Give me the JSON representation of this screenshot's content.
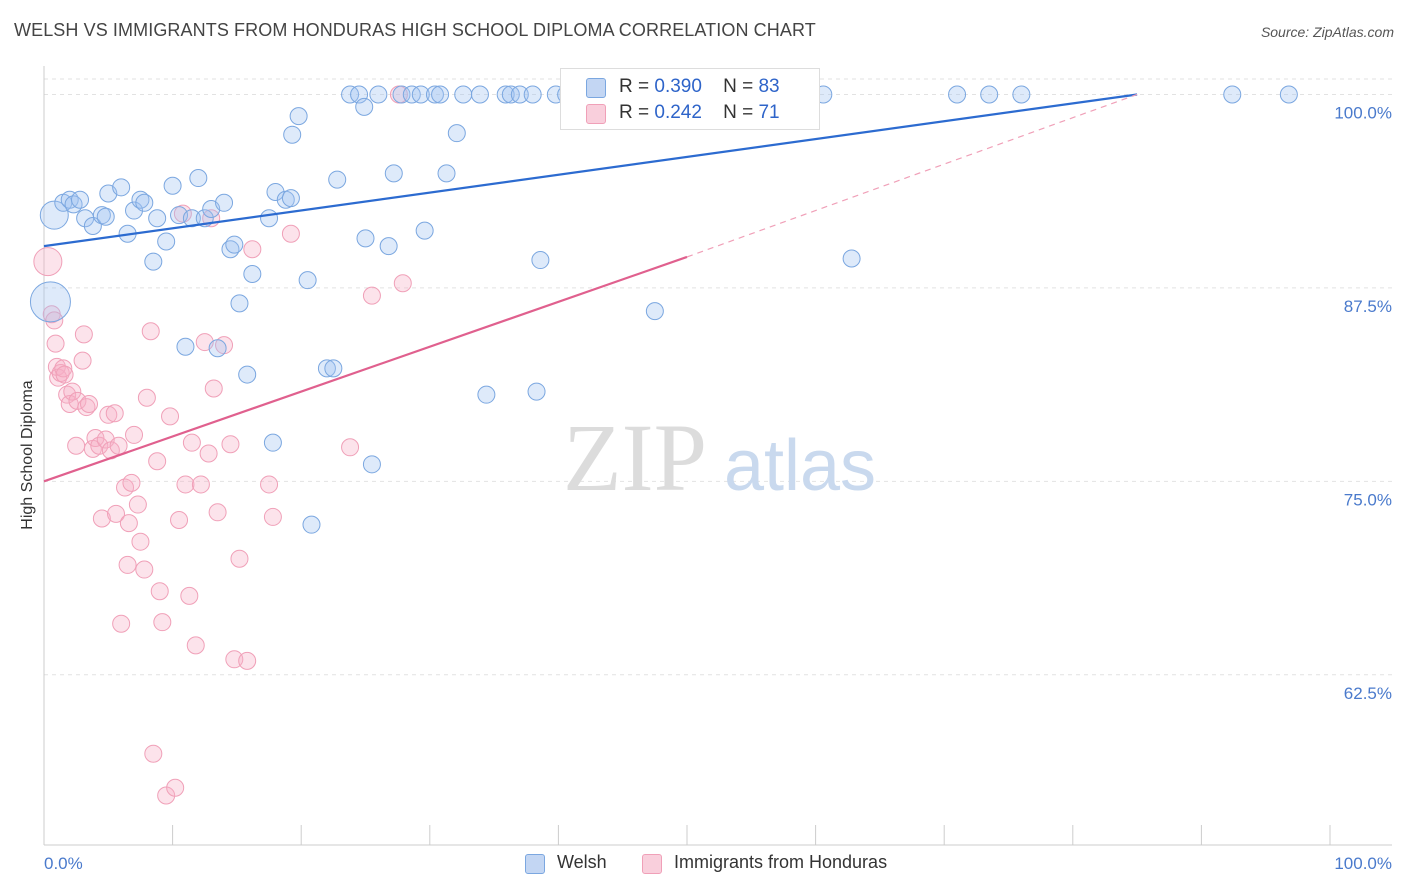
{
  "title": "WELSH VS IMMIGRANTS FROM HONDURAS HIGH SCHOOL DIPLOMA CORRELATION CHART",
  "source": "Source: ZipAtlas.com",
  "watermark": {
    "zip": "ZIP",
    "atlas": "atlas"
  },
  "legend_top": [
    {
      "r_label": "R =",
      "r_value": "0.390",
      "n_label": "N =",
      "n_value": "83"
    },
    {
      "r_label": "R =",
      "r_value": "0.242",
      "n_label": "N =",
      "n_value": "71"
    }
  ],
  "legend_bottom": [
    "Welsh",
    "Immigrants from Honduras"
  ],
  "chart_data": {
    "type": "scatter",
    "title": "WELSH VS IMMIGRANTS FROM HONDURAS HIGH SCHOOL DIPLOMA CORRELATION CHART",
    "xlabel": "",
    "ylabel": "High School Diploma",
    "xlim": [
      0,
      100
    ],
    "ylim": [
      51.5,
      101
    ],
    "x_tick_labels": [
      "0.0%",
      "100.0%"
    ],
    "y_ticks": [
      62.5,
      75.0,
      87.5,
      100.0
    ],
    "y_tick_labels": [
      "62.5%",
      "75.0%",
      "87.5%",
      "100.0%"
    ],
    "grid": true,
    "legend_placement": "bottom",
    "colors": {
      "welsh": "#7ba7e0",
      "welsh_line": "#2c6bd0",
      "honduras": "#f0a0b8",
      "honduras_line": "#e0608e",
      "axis_text": "#4a7acc"
    },
    "series": [
      {
        "name": "Welsh",
        "R": 0.39,
        "N": 83,
        "trend": {
          "x": [
            0,
            85
          ],
          "y": [
            90.2,
            100.0
          ]
        },
        "points": [
          [
            0.8,
            92.2,
            2
          ],
          [
            0.5,
            86.6,
            3
          ],
          [
            1.5,
            93.0,
            1
          ],
          [
            2.0,
            93.2,
            1
          ],
          [
            2.3,
            92.9,
            1
          ],
          [
            2.8,
            93.2,
            1
          ],
          [
            3.2,
            92.0,
            1
          ],
          [
            3.8,
            91.5,
            1
          ],
          [
            4.5,
            92.2,
            1
          ],
          [
            4.8,
            92.1,
            1
          ],
          [
            5.0,
            93.6,
            1
          ],
          [
            6.0,
            94.0,
            1
          ],
          [
            6.5,
            91.0,
            1
          ],
          [
            7.0,
            92.5,
            1
          ],
          [
            7.5,
            93.2,
            1
          ],
          [
            7.8,
            93.0,
            1
          ],
          [
            8.5,
            89.2,
            1
          ],
          [
            8.8,
            92.0,
            1
          ],
          [
            9.5,
            90.5,
            1
          ],
          [
            10.0,
            94.1,
            1
          ],
          [
            10.5,
            92.2,
            1
          ],
          [
            11.0,
            83.7,
            1
          ],
          [
            11.5,
            92.0,
            1
          ],
          [
            12.0,
            94.6,
            1
          ],
          [
            12.5,
            92.0,
            1
          ],
          [
            13.0,
            92.6,
            1
          ],
          [
            13.5,
            83.6,
            1
          ],
          [
            14.0,
            93.0,
            1
          ],
          [
            14.5,
            90.0,
            1
          ],
          [
            14.8,
            90.3,
            1
          ],
          [
            15.2,
            86.5,
            1
          ],
          [
            15.8,
            81.9,
            1
          ],
          [
            16.2,
            88.4,
            1
          ],
          [
            17.5,
            92.0,
            1
          ],
          [
            17.8,
            77.5,
            1
          ],
          [
            18.0,
            93.7,
            1
          ],
          [
            18.8,
            93.2,
            1
          ],
          [
            19.2,
            93.3,
            1
          ],
          [
            19.3,
            97.4,
            1
          ],
          [
            19.8,
            98.6,
            1
          ],
          [
            20.5,
            88.0,
            1
          ],
          [
            20.8,
            72.2,
            1
          ],
          [
            22.0,
            82.3,
            1
          ],
          [
            22.5,
            82.3,
            1
          ],
          [
            22.8,
            94.5,
            1
          ],
          [
            23.8,
            100.0,
            1
          ],
          [
            24.5,
            100.0,
            1
          ],
          [
            24.9,
            99.2,
            1
          ],
          [
            25.0,
            90.7,
            1
          ],
          [
            25.5,
            76.1,
            1
          ],
          [
            26.0,
            100.0,
            1
          ],
          [
            26.8,
            90.2,
            1
          ],
          [
            27.2,
            94.9,
            1
          ],
          [
            27.8,
            100.0,
            1
          ],
          [
            28.6,
            100.0,
            1
          ],
          [
            29.3,
            100.0,
            1
          ],
          [
            29.6,
            91.2,
            1
          ],
          [
            30.4,
            100.0,
            1
          ],
          [
            30.8,
            100.0,
            1
          ],
          [
            31.3,
            94.9,
            1
          ],
          [
            32.1,
            97.5,
            1
          ],
          [
            32.6,
            100.0,
            1
          ],
          [
            33.9,
            100.0,
            1
          ],
          [
            34.4,
            80.6,
            1
          ],
          [
            35.9,
            100.0,
            1
          ],
          [
            36.3,
            100.0,
            1
          ],
          [
            37.0,
            100.0,
            1
          ],
          [
            38.0,
            100.0,
            1
          ],
          [
            38.3,
            80.8,
            1
          ],
          [
            38.6,
            89.3,
            1
          ],
          [
            39.8,
            100.0,
            1
          ],
          [
            40.6,
            100.0,
            1
          ],
          [
            46.3,
            100.0,
            1
          ],
          [
            47.5,
            86.0,
            1
          ],
          [
            54.0,
            100.0,
            1
          ],
          [
            56.3,
            100.0,
            1
          ],
          [
            60.6,
            100.0,
            1
          ],
          [
            62.8,
            89.4,
            1
          ],
          [
            71.0,
            100.0,
            1
          ],
          [
            73.5,
            100.0,
            1
          ],
          [
            76.0,
            100.0,
            1
          ],
          [
            92.4,
            100.0,
            1
          ],
          [
            96.8,
            100.0,
            1
          ]
        ]
      },
      {
        "name": "Immigrants from Honduras",
        "R": 0.242,
        "N": 71,
        "trend": {
          "x": [
            0,
            50
          ],
          "y": [
            75.0,
            89.5
          ]
        },
        "trend_dashed": {
          "x": [
            50,
            85
          ],
          "y": [
            89.5,
            100.0
          ]
        },
        "points": [
          [
            0.3,
            89.2,
            2
          ],
          [
            0.6,
            85.8,
            1
          ],
          [
            0.8,
            85.4,
            1
          ],
          [
            0.9,
            83.9,
            1
          ],
          [
            1.0,
            82.4,
            1
          ],
          [
            1.1,
            81.7,
            1
          ],
          [
            1.3,
            82.0,
            1
          ],
          [
            1.5,
            82.3,
            1
          ],
          [
            1.6,
            81.9,
            1
          ],
          [
            1.8,
            80.6,
            1
          ],
          [
            2.0,
            80.0,
            1
          ],
          [
            2.2,
            80.8,
            1
          ],
          [
            2.5,
            77.3,
            1
          ],
          [
            2.6,
            80.2,
            1
          ],
          [
            3.0,
            82.8,
            1
          ],
          [
            3.1,
            84.5,
            1
          ],
          [
            3.3,
            79.8,
            1
          ],
          [
            3.5,
            80.0,
            1
          ],
          [
            3.8,
            77.1,
            1
          ],
          [
            4.0,
            77.8,
            1
          ],
          [
            4.3,
            77.3,
            1
          ],
          [
            4.5,
            72.6,
            1
          ],
          [
            4.8,
            77.7,
            1
          ],
          [
            5.0,
            79.3,
            1
          ],
          [
            5.2,
            77.0,
            1
          ],
          [
            5.5,
            79.4,
            1
          ],
          [
            5.6,
            72.9,
            1
          ],
          [
            5.8,
            77.3,
            1
          ],
          [
            6.0,
            65.8,
            1
          ],
          [
            6.3,
            74.6,
            1
          ],
          [
            6.5,
            69.6,
            1
          ],
          [
            6.6,
            72.3,
            1
          ],
          [
            6.8,
            74.9,
            1
          ],
          [
            7.0,
            78.0,
            1
          ],
          [
            7.3,
            73.5,
            1
          ],
          [
            7.5,
            71.1,
            1
          ],
          [
            7.8,
            69.3,
            1
          ],
          [
            8.0,
            80.4,
            1
          ],
          [
            8.3,
            84.7,
            1
          ],
          [
            8.5,
            57.4,
            1
          ],
          [
            8.8,
            76.3,
            1
          ],
          [
            9.0,
            67.9,
            1
          ],
          [
            9.2,
            65.9,
            1
          ],
          [
            9.5,
            54.7,
            1
          ],
          [
            9.8,
            79.2,
            1
          ],
          [
            10.2,
            55.2,
            1
          ],
          [
            10.5,
            72.5,
            1
          ],
          [
            10.8,
            92.3,
            1
          ],
          [
            11.0,
            74.8,
            1
          ],
          [
            11.3,
            67.6,
            1
          ],
          [
            11.5,
            77.5,
            1
          ],
          [
            11.8,
            64.4,
            1
          ],
          [
            12.2,
            74.8,
            1
          ],
          [
            12.5,
            84.0,
            1
          ],
          [
            12.8,
            76.8,
            1
          ],
          [
            13.0,
            92.0,
            1
          ],
          [
            13.2,
            81.0,
            1
          ],
          [
            13.5,
            73.0,
            1
          ],
          [
            14.0,
            83.8,
            1
          ],
          [
            14.5,
            77.4,
            1
          ],
          [
            14.8,
            63.5,
            1
          ],
          [
            15.2,
            70.0,
            1
          ],
          [
            15.8,
            63.4,
            1
          ],
          [
            16.2,
            90.0,
            1
          ],
          [
            17.5,
            74.8,
            1
          ],
          [
            17.8,
            72.7,
            1
          ],
          [
            19.2,
            91.0,
            1
          ],
          [
            23.8,
            77.2,
            1
          ],
          [
            25.5,
            87.0,
            1
          ],
          [
            27.6,
            100.0,
            1
          ],
          [
            27.9,
            87.8,
            1
          ]
        ]
      }
    ]
  }
}
